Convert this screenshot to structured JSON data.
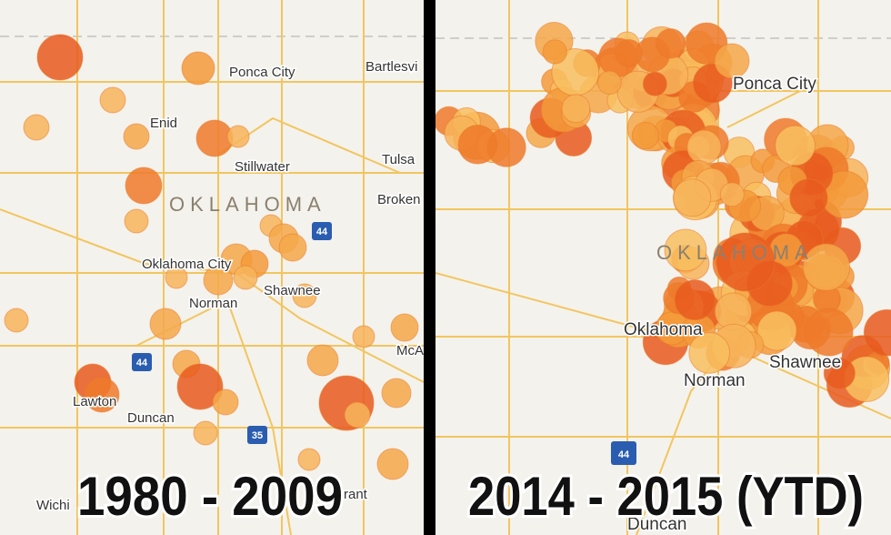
{
  "left": {
    "places": [
      "Ponca City",
      "Bartlesvi",
      "Enid",
      "Stillwater",
      "Tulsa",
      "Broken",
      "Oklahoma City",
      "Shawnee",
      "Norman",
      "McA",
      "Lawton",
      "Duncan",
      "Wichi",
      "rant"
    ],
    "state": "OKLAHOMA",
    "shields": [
      "44",
      "44",
      "35"
    ],
    "caption": "1980 - 2009"
  },
  "right": {
    "places": [
      "Ponca City",
      "Oklahoma",
      "Norman",
      "Shawnee",
      "Duncan"
    ],
    "state": "OKLAHOMA",
    "shields": [
      "44"
    ],
    "caption": "2014 - 2015 (YTD)"
  }
}
